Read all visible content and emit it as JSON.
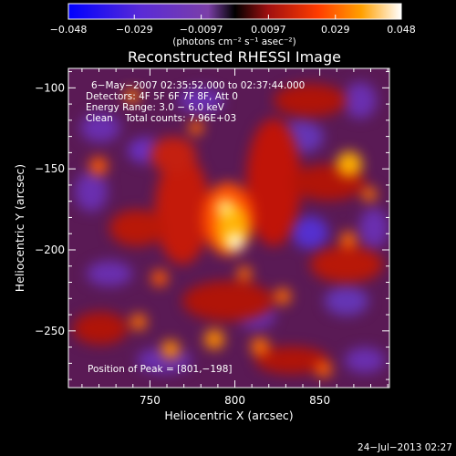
{
  "chart_data": {
    "type": "heatmap",
    "title": "Reconstructed RHESSI Image",
    "xlabel": "Heliocentric X (arcsec)",
    "ylabel": "Heliocentric Y (arcsec)",
    "xlim": [
      702,
      891
    ],
    "ylim": [
      -285,
      -88
    ],
    "x_ticks": [
      750,
      800,
      850
    ],
    "y_ticks": [
      -250,
      -200,
      -150,
      -100
    ],
    "x_tick_labels": [
      "750",
      "800",
      "850"
    ],
    "y_tick_labels": [
      "−250",
      "−200",
      "−150",
      "−100"
    ],
    "colorbar": {
      "min": -0.048,
      "max": 0.048,
      "ticks": [
        -0.048,
        -0.029,
        -0.0097,
        0.0097,
        0.029,
        0.048
      ],
      "tick_labels": [
        "−0.048",
        "−0.029",
        "−0.0097",
        "0.0097",
        "0.029",
        "0.048"
      ],
      "unit_label": "(photons cm⁻² s⁻¹ asec⁻²)",
      "colors": [
        "#0000ff",
        "#5a2bd6",
        "#7b3fa8",
        "#000000",
        "#a01010",
        "#ff3c00",
        "#ffa000",
        "#ffffff"
      ]
    },
    "annotations": [
      "6−May−2007 02:35:52.000 to 02:37:44.000",
      "Detectors: 4F 5F 6F 7F 8F, Att 0",
      "Energy Range: 3.0 − 6.0 keV",
      "Clean    Total counts: 7.96E+03",
      "Position of Peak = [801,−198]"
    ],
    "peak": [
      801,
      -198
    ],
    "footer_timestamp": "24−Jul−2013 02:27"
  }
}
